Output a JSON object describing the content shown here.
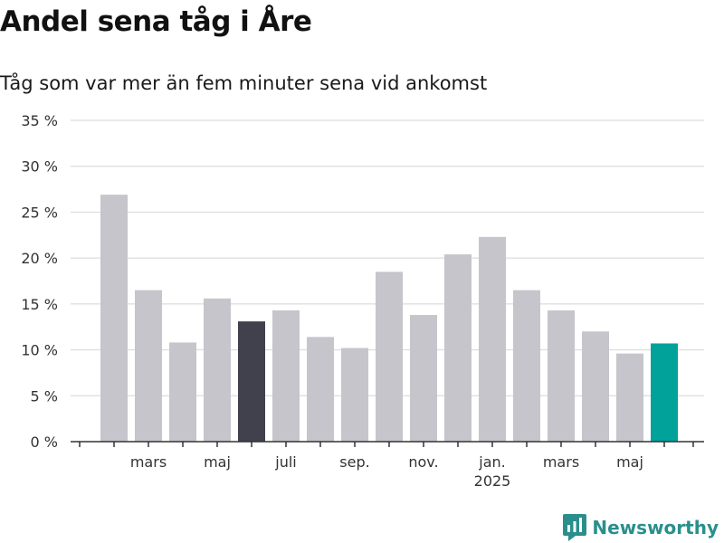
{
  "title": "Andel sena tåg i Åre",
  "subtitle": "Tåg som var mer än fem minuter sena vid ankomst",
  "brand": "Newsworthy",
  "colors": {
    "bar_default": "#c6c5cc",
    "bar_highlight_dark": "#41414d",
    "bar_highlight_teal": "#00a29a",
    "grid": "#dcdcdc",
    "axis": "#333333",
    "brand": "#2a8f8c"
  },
  "chart_data": {
    "type": "bar",
    "title": "Andel sena tåg i Åre",
    "subtitle": "Tåg som var mer än fem minuter sena vid ankomst",
    "categories": [
      "2024-02",
      "2024-03",
      "2024-04",
      "2024-05",
      "2024-06",
      "2024-07",
      "2024-08",
      "2024-09",
      "2024-10",
      "2024-11",
      "2024-12",
      "2025-01",
      "2025-02",
      "2025-03",
      "2025-04",
      "2025-05",
      "2025-06"
    ],
    "values": [
      26.9,
      16.5,
      10.8,
      15.6,
      13.1,
      14.3,
      11.4,
      10.2,
      18.5,
      13.8,
      20.4,
      22.3,
      16.5,
      14.3,
      12.0,
      9.6,
      10.7
    ],
    "highlight": {
      "2024-06": "bar_highlight_dark",
      "2025-06": "bar_highlight_teal"
    },
    "ylim": [
      0,
      35
    ],
    "yticks": [
      0,
      5,
      10,
      15,
      20,
      25,
      30,
      35
    ],
    "ytick_labels": [
      "0 %",
      "5 %",
      "10 %",
      "15 %",
      "20 %",
      "25 %",
      "30 %",
      "35 %"
    ],
    "xtick_labels": [
      {
        "category": "2024-03",
        "label": "mars"
      },
      {
        "category": "2024-05",
        "label": "maj"
      },
      {
        "category": "2024-07",
        "label": "juli"
      },
      {
        "category": "2024-09",
        "label": "sep."
      },
      {
        "category": "2024-11",
        "label": "nov."
      },
      {
        "category": "2025-01",
        "label": "jan.",
        "year": "2025"
      },
      {
        "category": "2025-03",
        "label": "mars"
      },
      {
        "category": "2025-05",
        "label": "maj"
      }
    ],
    "xlabel": "",
    "ylabel": "",
    "grid": true,
    "legend": false
  }
}
